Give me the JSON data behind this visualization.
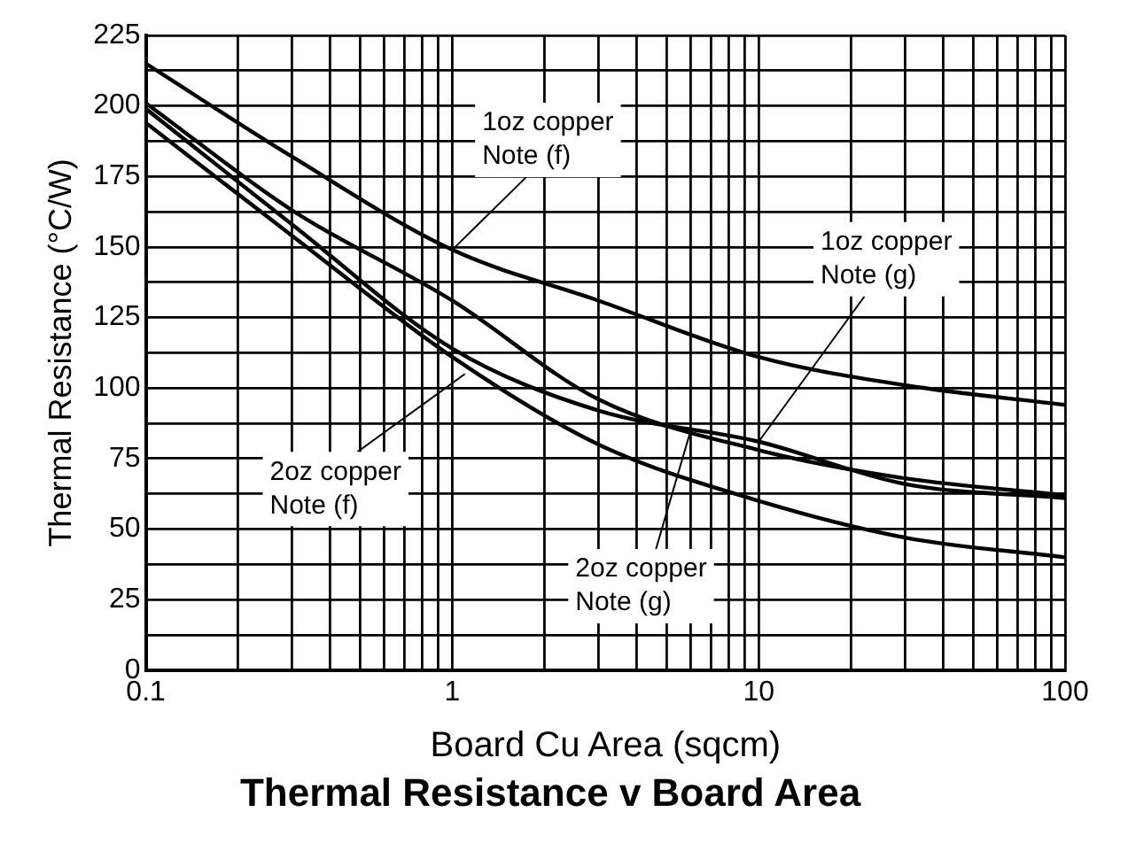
{
  "chart_data": {
    "type": "line",
    "title": "Thermal Resistance v Board Area",
    "xlabel": "Board Cu Area (sqcm)",
    "ylabel": "Thermal Resistance (°C/W)",
    "x": [
      0.1,
      0.3,
      1,
      3,
      10,
      30,
      100
    ],
    "series": [
      {
        "color": "#000000",
        "values": [
          215,
          182,
          149,
          131,
          111,
          101,
          94
        ]
      },
      {
        "color": "#000000",
        "values": [
          201,
          163,
          131,
          96,
          78,
          68,
          62
        ]
      },
      {
        "color": "#000000",
        "values": [
          199,
          158,
          114,
          92,
          81,
          66,
          61
        ]
      },
      {
        "color": "#000000",
        "values": [
          194,
          154,
          111,
          80,
          60,
          47,
          40
        ]
      }
    ],
    "annotations": [
      {
        "text": "1oz copper\nNote (f)",
        "x": 1,
        "y": 149
      },
      {
        "text": "1oz copper\nNote (g)",
        "x": 10,
        "y": 81
      },
      {
        "text": "2oz copper\nNote (f)",
        "x": 1.1,
        "y": 105
      },
      {
        "text": "2oz copper\nNote (g)",
        "x": 6,
        "y": 85
      }
    ],
    "log": "x",
    "xlim": [
      0.1,
      100
    ],
    "ylim": [
      0,
      225
    ],
    "xticks": [
      0.1,
      {
        "value": 0.2,
        "label": null
      },
      {
        "value": 0.3,
        "label": null
      },
      {
        "value": 0.4,
        "label": null
      },
      {
        "value": 0.5,
        "label": null
      },
      {
        "value": 0.6,
        "label": null
      },
      {
        "value": 0.7,
        "label": null
      },
      {
        "value": 0.8,
        "label": null
      },
      {
        "value": 0.9,
        "label": null
      },
      1,
      {
        "value": 2,
        "label": null
      },
      {
        "value": 3,
        "label": null
      },
      {
        "value": 4,
        "label": null
      },
      {
        "value": 5,
        "label": null
      },
      {
        "value": 6,
        "label": null
      },
      {
        "value": 7,
        "label": null
      },
      {
        "value": 8,
        "label": null
      },
      {
        "value": 9,
        "label": null
      },
      10,
      {
        "value": 20,
        "label": null
      },
      {
        "value": 30,
        "label": null
      },
      {
        "value": 40,
        "label": null
      },
      {
        "value": 50,
        "label": null
      },
      {
        "value": 60,
        "label": null
      },
      {
        "value": 70,
        "label": null
      },
      {
        "value": 80,
        "label": null
      },
      {
        "value": 90,
        "label": null
      },
      100
    ],
    "yticks": [
      0,
      {
        "value": 12.5,
        "label": null
      },
      25,
      {
        "value": 37.5,
        "label": null
      },
      50,
      {
        "value": 62.5,
        "label": null
      },
      75,
      {
        "value": 87.5,
        "label": null
      },
      100,
      {
        "value": 112.5,
        "label": null
      },
      125,
      {
        "value": 137.5,
        "label": null
      },
      150,
      {
        "value": 162.5,
        "label": null
      },
      175,
      {
        "value": 187.5,
        "label": null
      },
      200,
      {
        "value": 212.5,
        "label": null
      },
      225
    ],
    "grid": true,
    "legend": false,
    "marker": "none",
    "line_style": "solid"
  }
}
